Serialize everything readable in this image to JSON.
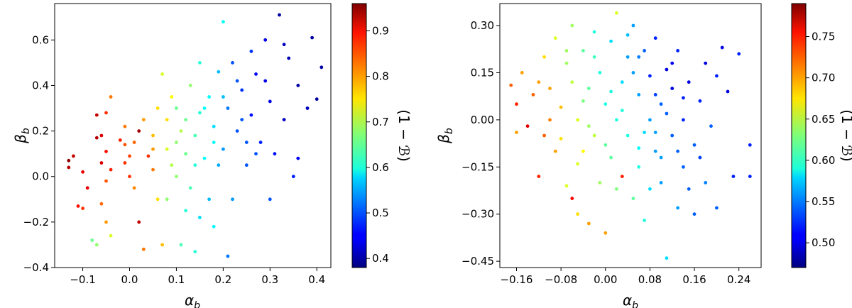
{
  "chart_data": [
    {
      "type": "scatter",
      "xlabel": "α",
      "xlabel_sub": "b",
      "ylabel": "β",
      "ylabel_sub": "b",
      "xlim": [
        -0.16,
        0.43
      ],
      "ylim": [
        -0.4,
        0.76
      ],
      "xticks": [
        -0.1,
        0.0,
        0.1,
        0.2,
        0.3,
        0.4
      ],
      "xtick_labels": [
        "−0.1",
        "0.0",
        "0.1",
        "0.2",
        "0.3",
        "0.4"
      ],
      "yticks": [
        -0.4,
        -0.2,
        0.0,
        0.2,
        0.4,
        0.6
      ],
      "ytick_labels": [
        "−0.4",
        "−0.2",
        "0.0",
        "0.2",
        "0.4",
        "0.6"
      ],
      "colorbar": {
        "label": "(1 − ℬ)",
        "colormap": "jet",
        "min": 0.38,
        "max": 0.96,
        "ticks": [
          0.4,
          0.5,
          0.6,
          0.7,
          0.8,
          0.9
        ],
        "tick_labels": [
          "0.4",
          "0.5",
          "0.6",
          "0.7",
          "0.8",
          "0.9"
        ]
      },
      "points": [
        [
          -0.13,
          0.04,
          0.93
        ],
        [
          -0.13,
          0.07,
          0.95
        ],
        [
          -0.12,
          0.09,
          0.92
        ],
        [
          -0.1,
          0.02,
          0.9
        ],
        [
          -0.09,
          -0.05,
          0.9
        ],
        [
          -0.1,
          -0.14,
          0.86
        ],
        [
          -0.11,
          -0.13,
          0.88
        ],
        [
          -0.07,
          0.17,
          0.93
        ],
        [
          -0.07,
          0.27,
          0.92
        ],
        [
          -0.06,
          0.18,
          0.91
        ],
        [
          -0.06,
          0.06,
          0.91
        ],
        [
          -0.05,
          0.11,
          0.88
        ],
        [
          -0.05,
          0.28,
          0.86
        ],
        [
          -0.04,
          0.35,
          0.82
        ],
        [
          -0.04,
          0.03,
          0.87
        ],
        [
          -0.05,
          -0.02,
          0.84
        ],
        [
          -0.06,
          -0.12,
          0.83
        ],
        [
          -0.05,
          -0.2,
          0.8
        ],
        [
          -0.08,
          -0.28,
          0.66
        ],
        [
          -0.07,
          -0.3,
          0.68
        ],
        [
          -0.04,
          -0.26,
          0.72
        ],
        [
          -0.02,
          0.16,
          0.87
        ],
        [
          -0.01,
          0.14,
          0.84
        ],
        [
          -0.01,
          0.06,
          0.86
        ],
        [
          0.0,
          0.09,
          0.85
        ],
        [
          0.01,
          0.15,
          0.83
        ],
        [
          0.01,
          -0.05,
          0.81
        ],
        [
          0.02,
          0.2,
          0.94
        ],
        [
          0.02,
          -0.2,
          0.92
        ],
        [
          0.03,
          -0.32,
          0.82
        ],
        [
          0.04,
          0.09,
          0.86
        ],
        [
          0.05,
          0.18,
          0.78
        ],
        [
          0.05,
          0.03,
          0.82
        ],
        [
          0.06,
          -0.1,
          0.76
        ],
        [
          0.07,
          -0.3,
          0.78
        ],
        [
          0.08,
          0.25,
          0.76
        ],
        [
          0.09,
          0.35,
          0.74
        ],
        [
          0.08,
          0.12,
          0.72
        ],
        [
          0.1,
          0.0,
          0.68
        ],
        [
          0.11,
          0.2,
          0.7
        ],
        [
          0.1,
          0.3,
          0.66
        ],
        [
          0.12,
          0.1,
          0.66
        ],
        [
          0.13,
          0.4,
          0.68
        ],
        [
          0.14,
          0.18,
          0.64
        ],
        [
          0.13,
          -0.05,
          0.64
        ],
        [
          0.15,
          0.28,
          0.62
        ],
        [
          0.16,
          0.08,
          0.6
        ],
        [
          0.15,
          -0.18,
          0.58
        ],
        [
          0.17,
          0.35,
          0.6
        ],
        [
          0.18,
          0.22,
          0.58
        ],
        [
          0.19,
          0.46,
          0.56
        ],
        [
          0.2,
          0.12,
          0.54
        ],
        [
          0.21,
          0.3,
          0.52
        ],
        [
          0.21,
          -0.35,
          0.52
        ],
        [
          0.22,
          0.5,
          0.5
        ],
        [
          0.23,
          0.2,
          0.5
        ],
        [
          0.24,
          0.38,
          0.48
        ],
        [
          0.25,
          0.05,
          0.5
        ],
        [
          0.26,
          0.27,
          0.46
        ],
        [
          0.27,
          0.45,
          0.45
        ],
        [
          0.28,
          0.15,
          0.47
        ],
        [
          0.29,
          0.6,
          0.44
        ],
        [
          0.3,
          0.33,
          0.44
        ],
        [
          0.31,
          0.1,
          0.46
        ],
        [
          0.32,
          0.71,
          0.4
        ],
        [
          0.33,
          0.25,
          0.42
        ],
        [
          0.34,
          0.52,
          0.41
        ],
        [
          0.35,
          0.0,
          0.47
        ],
        [
          0.36,
          0.4,
          0.4
        ],
        [
          0.38,
          0.3,
          0.42
        ],
        [
          0.39,
          0.61,
          0.4
        ],
        [
          0.4,
          0.34,
          0.4
        ],
        [
          0.41,
          0.48,
          0.4
        ],
        [
          0.36,
          0.08,
          0.45
        ],
        [
          0.33,
          0.58,
          0.42
        ],
        [
          0.27,
          0.1,
          0.5
        ],
        [
          0.23,
          0.42,
          0.5
        ],
        [
          0.19,
          0.05,
          0.55
        ],
        [
          0.17,
          -0.1,
          0.56
        ],
        [
          0.12,
          -0.15,
          0.62
        ],
        [
          0.08,
          -0.1,
          0.68
        ],
        [
          0.06,
          0.3,
          0.76
        ],
        [
          0.03,
          0.25,
          0.8
        ],
        [
          -0.01,
          0.22,
          0.82
        ],
        [
          0.07,
          0.45,
          0.72
        ],
        [
          0.15,
          0.5,
          0.62
        ],
        [
          0.2,
          0.68,
          0.6
        ],
        [
          0.26,
          0.55,
          0.48
        ],
        [
          0.11,
          -0.3,
          0.64
        ],
        [
          0.14,
          -0.33,
          0.62
        ],
        [
          0.18,
          -0.22,
          0.6
        ],
        [
          0.22,
          -0.1,
          0.54
        ],
        [
          0.3,
          -0.1,
          0.5
        ],
        [
          0.09,
          0.05,
          0.7
        ],
        [
          0.18,
          0.15,
          0.6
        ],
        [
          0.24,
          0.25,
          0.5
        ],
        [
          0.29,
          0.42,
          0.44
        ],
        [
          0.12,
          0.25,
          0.66
        ],
        [
          0.16,
          0.3,
          0.6
        ],
        [
          0.2,
          0.35,
          0.56
        ],
        [
          0.05,
          0.12,
          0.8
        ],
        [
          0.0,
          0.0,
          0.86
        ],
        [
          0.1,
          0.15,
          0.68
        ],
        [
          0.14,
          0.05,
          0.62
        ],
        [
          0.25,
          0.15,
          0.5
        ]
      ]
    },
    {
      "type": "scatter",
      "xlabel": "α",
      "xlabel_sub": "b",
      "ylabel": "β",
      "ylabel_sub": "b",
      "xlim": [
        -0.19,
        0.28
      ],
      "ylim": [
        -0.47,
        0.37
      ],
      "xticks": [
        -0.16,
        -0.08,
        0.0,
        0.08,
        0.16,
        0.24
      ],
      "xtick_labels": [
        "−0.16",
        "−0.08",
        "0.00",
        "0.08",
        "0.16",
        "0.24"
      ],
      "yticks": [
        -0.45,
        -0.3,
        -0.15,
        0.0,
        0.15,
        0.3
      ],
      "ytick_labels": [
        "−0.45",
        "−0.30",
        "−0.15",
        "0.00",
        "0.15",
        "0.30"
      ],
      "colorbar": {
        "label": "(1 − ℬ)",
        "colormap": "jet",
        "min": 0.47,
        "max": 0.79,
        "ticks": [
          0.5,
          0.55,
          0.6,
          0.65,
          0.7,
          0.75
        ],
        "tick_labels": [
          "0.50",
          "0.55",
          "0.60",
          "0.65",
          "0.70",
          "0.75"
        ]
      },
      "points": [
        [
          -0.17,
          0.11,
          0.72
        ],
        [
          -0.16,
          0.05,
          0.74
        ],
        [
          -0.16,
          -0.04,
          0.7
        ],
        [
          -0.15,
          0.15,
          0.7
        ],
        [
          -0.14,
          -0.02,
          0.76
        ],
        [
          -0.13,
          0.08,
          0.72
        ],
        [
          -0.12,
          -0.18,
          0.74
        ],
        [
          -0.11,
          0.2,
          0.68
        ],
        [
          -0.11,
          -0.05,
          0.72
        ],
        [
          -0.1,
          0.1,
          0.7
        ],
        [
          -0.09,
          0.26,
          0.66
        ],
        [
          -0.09,
          -0.1,
          0.7
        ],
        [
          -0.08,
          0.04,
          0.69
        ],
        [
          -0.07,
          -0.21,
          0.66
        ],
        [
          -0.07,
          0.18,
          0.64
        ],
        [
          -0.06,
          0.3,
          0.64
        ],
        [
          -0.06,
          -0.25,
          0.75
        ],
        [
          -0.05,
          0.0,
          0.66
        ],
        [
          -0.05,
          -0.3,
          0.68
        ],
        [
          -0.04,
          0.22,
          0.62
        ],
        [
          -0.04,
          -0.1,
          0.67
        ],
        [
          -0.03,
          0.1,
          0.62
        ],
        [
          -0.03,
          -0.33,
          0.7
        ],
        [
          -0.02,
          0.28,
          0.6
        ],
        [
          -0.02,
          -0.05,
          0.65
        ],
        [
          -0.01,
          0.15,
          0.6
        ],
        [
          -0.01,
          -0.2,
          0.64
        ],
        [
          0.0,
          0.05,
          0.6
        ],
        [
          0.0,
          -0.36,
          0.7
        ],
        [
          0.01,
          0.25,
          0.58
        ],
        [
          0.01,
          -0.12,
          0.62
        ],
        [
          0.02,
          0.0,
          0.6
        ],
        [
          0.02,
          0.34,
          0.66
        ],
        [
          0.03,
          -0.18,
          0.74
        ],
        [
          0.03,
          0.12,
          0.58
        ],
        [
          0.04,
          0.2,
          0.56
        ],
        [
          0.04,
          -0.05,
          0.6
        ],
        [
          0.05,
          0.3,
          0.56
        ],
        [
          0.05,
          -0.25,
          0.62
        ],
        [
          0.06,
          0.08,
          0.56
        ],
        [
          0.06,
          -0.15,
          0.6
        ],
        [
          0.07,
          0.22,
          0.54
        ],
        [
          0.07,
          -0.32,
          0.6
        ],
        [
          0.08,
          0.0,
          0.56
        ],
        [
          0.08,
          0.14,
          0.52
        ],
        [
          0.09,
          -0.1,
          0.56
        ],
        [
          0.09,
          0.26,
          0.52
        ],
        [
          0.1,
          0.05,
          0.54
        ],
        [
          0.1,
          -0.2,
          0.56
        ],
        [
          0.11,
          0.16,
          0.5
        ],
        [
          0.11,
          -0.44,
          0.58
        ],
        [
          0.12,
          -0.05,
          0.54
        ],
        [
          0.12,
          0.1,
          0.5
        ],
        [
          0.13,
          -0.28,
          0.56
        ],
        [
          0.13,
          0.22,
          0.52
        ],
        [
          0.14,
          0.0,
          0.52
        ],
        [
          0.14,
          -0.15,
          0.54
        ],
        [
          0.15,
          0.12,
          0.5
        ],
        [
          0.16,
          -0.08,
          0.54
        ],
        [
          0.16,
          -0.3,
          0.54
        ],
        [
          0.17,
          0.06,
          0.52
        ],
        [
          0.18,
          -0.2,
          0.55
        ],
        [
          0.18,
          0.18,
          0.5
        ],
        [
          0.19,
          -0.02,
          0.54
        ],
        [
          0.2,
          0.14,
          0.52
        ],
        [
          0.2,
          -0.28,
          0.54
        ],
        [
          0.21,
          0.23,
          0.5
        ],
        [
          0.22,
          0.09,
          0.5
        ],
        [
          0.23,
          -0.18,
          0.52
        ],
        [
          0.24,
          0.21,
          0.52
        ],
        [
          0.26,
          -0.08,
          0.52
        ],
        [
          0.26,
          -0.18,
          0.52
        ],
        [
          0.03,
          0.03,
          0.6
        ],
        [
          -0.04,
          0.06,
          0.63
        ],
        [
          0.07,
          -0.04,
          0.58
        ],
        [
          0.11,
          0.02,
          0.54
        ],
        [
          -0.08,
          -0.06,
          0.68
        ],
        [
          0.0,
          -0.08,
          0.62
        ],
        [
          0.05,
          0.15,
          0.56
        ],
        [
          0.09,
          0.08,
          0.53
        ],
        [
          -0.1,
          0.0,
          0.71
        ],
        [
          0.14,
          0.07,
          0.52
        ],
        [
          -0.06,
          0.12,
          0.65
        ],
        [
          0.02,
          -0.22,
          0.63
        ],
        [
          0.06,
          -0.09,
          0.59
        ],
        [
          0.1,
          -0.12,
          0.56
        ],
        [
          -0.02,
          0.2,
          0.61
        ],
        [
          0.12,
          0.18,
          0.51
        ],
        [
          -0.12,
          0.12,
          0.7
        ],
        [
          0.04,
          0.27,
          0.57
        ],
        [
          -0.05,
          -0.14,
          0.66
        ],
        [
          0.08,
          -0.22,
          0.58
        ],
        [
          0.15,
          -0.22,
          0.54
        ],
        [
          0.01,
          0.09,
          0.6
        ],
        [
          -0.03,
          -0.02,
          0.64
        ],
        [
          0.13,
          -0.1,
          0.54
        ],
        [
          0.17,
          -0.12,
          0.53
        ],
        [
          0.06,
          0.2,
          0.55
        ],
        [
          -0.07,
          0.22,
          0.64
        ],
        [
          0.09,
          -0.04,
          0.56
        ]
      ]
    }
  ]
}
